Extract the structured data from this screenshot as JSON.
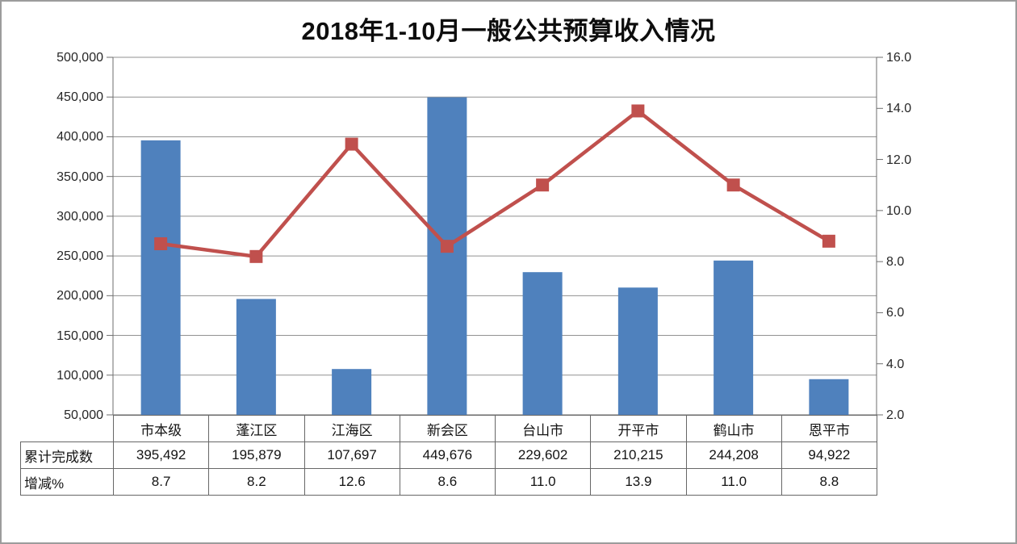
{
  "title": "2018年1-10月一般公共预算收入情况",
  "chart_data": {
    "type": "combo (bar + line)",
    "title": "2018年1-10月一般公共预算收入情况",
    "categories": [
      "市本级",
      "蓬江区",
      "江海区",
      "新会区",
      "台山市",
      "开平市",
      "鹤山市",
      "恩平市"
    ],
    "series": [
      {
        "name": "累计完成数",
        "type": "bar",
        "axis": "left",
        "color": "#4F81BD",
        "values": [
          395492,
          195879,
          107697,
          449676,
          229602,
          210215,
          244208,
          94922
        ]
      },
      {
        "name": "增减%",
        "type": "line",
        "axis": "right",
        "color": "#C0504D",
        "marker": "square",
        "values": [
          8.7,
          8.2,
          12.6,
          8.6,
          11.0,
          13.9,
          11.0,
          8.8
        ]
      }
    ],
    "left_axis": {
      "min": 50000,
      "max": 500000,
      "step": 50000,
      "tick_labels": [
        "500,000",
        "450,000",
        "400,000",
        "350,000",
        "300,000",
        "250,000",
        "200,000",
        "150,000",
        "100,000",
        "50,000"
      ]
    },
    "right_axis": {
      "min": 2.0,
      "max": 16.0,
      "step": 2.0,
      "tick_labels": [
        "16.0",
        "14.0",
        "12.0",
        "10.0",
        "8.0",
        "6.0",
        "4.0",
        "2.0"
      ]
    },
    "grid": true,
    "legend_position": "none (data table below chart)"
  },
  "table": {
    "row_headers": [
      "累计完成数",
      "增减%"
    ],
    "rows": [
      [
        "395,492",
        "195,879",
        "107,697",
        "449,676",
        "229,602",
        "210,215",
        "244,208",
        "94,922"
      ],
      [
        "8.7",
        "8.2",
        "12.6",
        "8.6",
        "11.0",
        "13.9",
        "11.0",
        "8.8"
      ]
    ]
  }
}
